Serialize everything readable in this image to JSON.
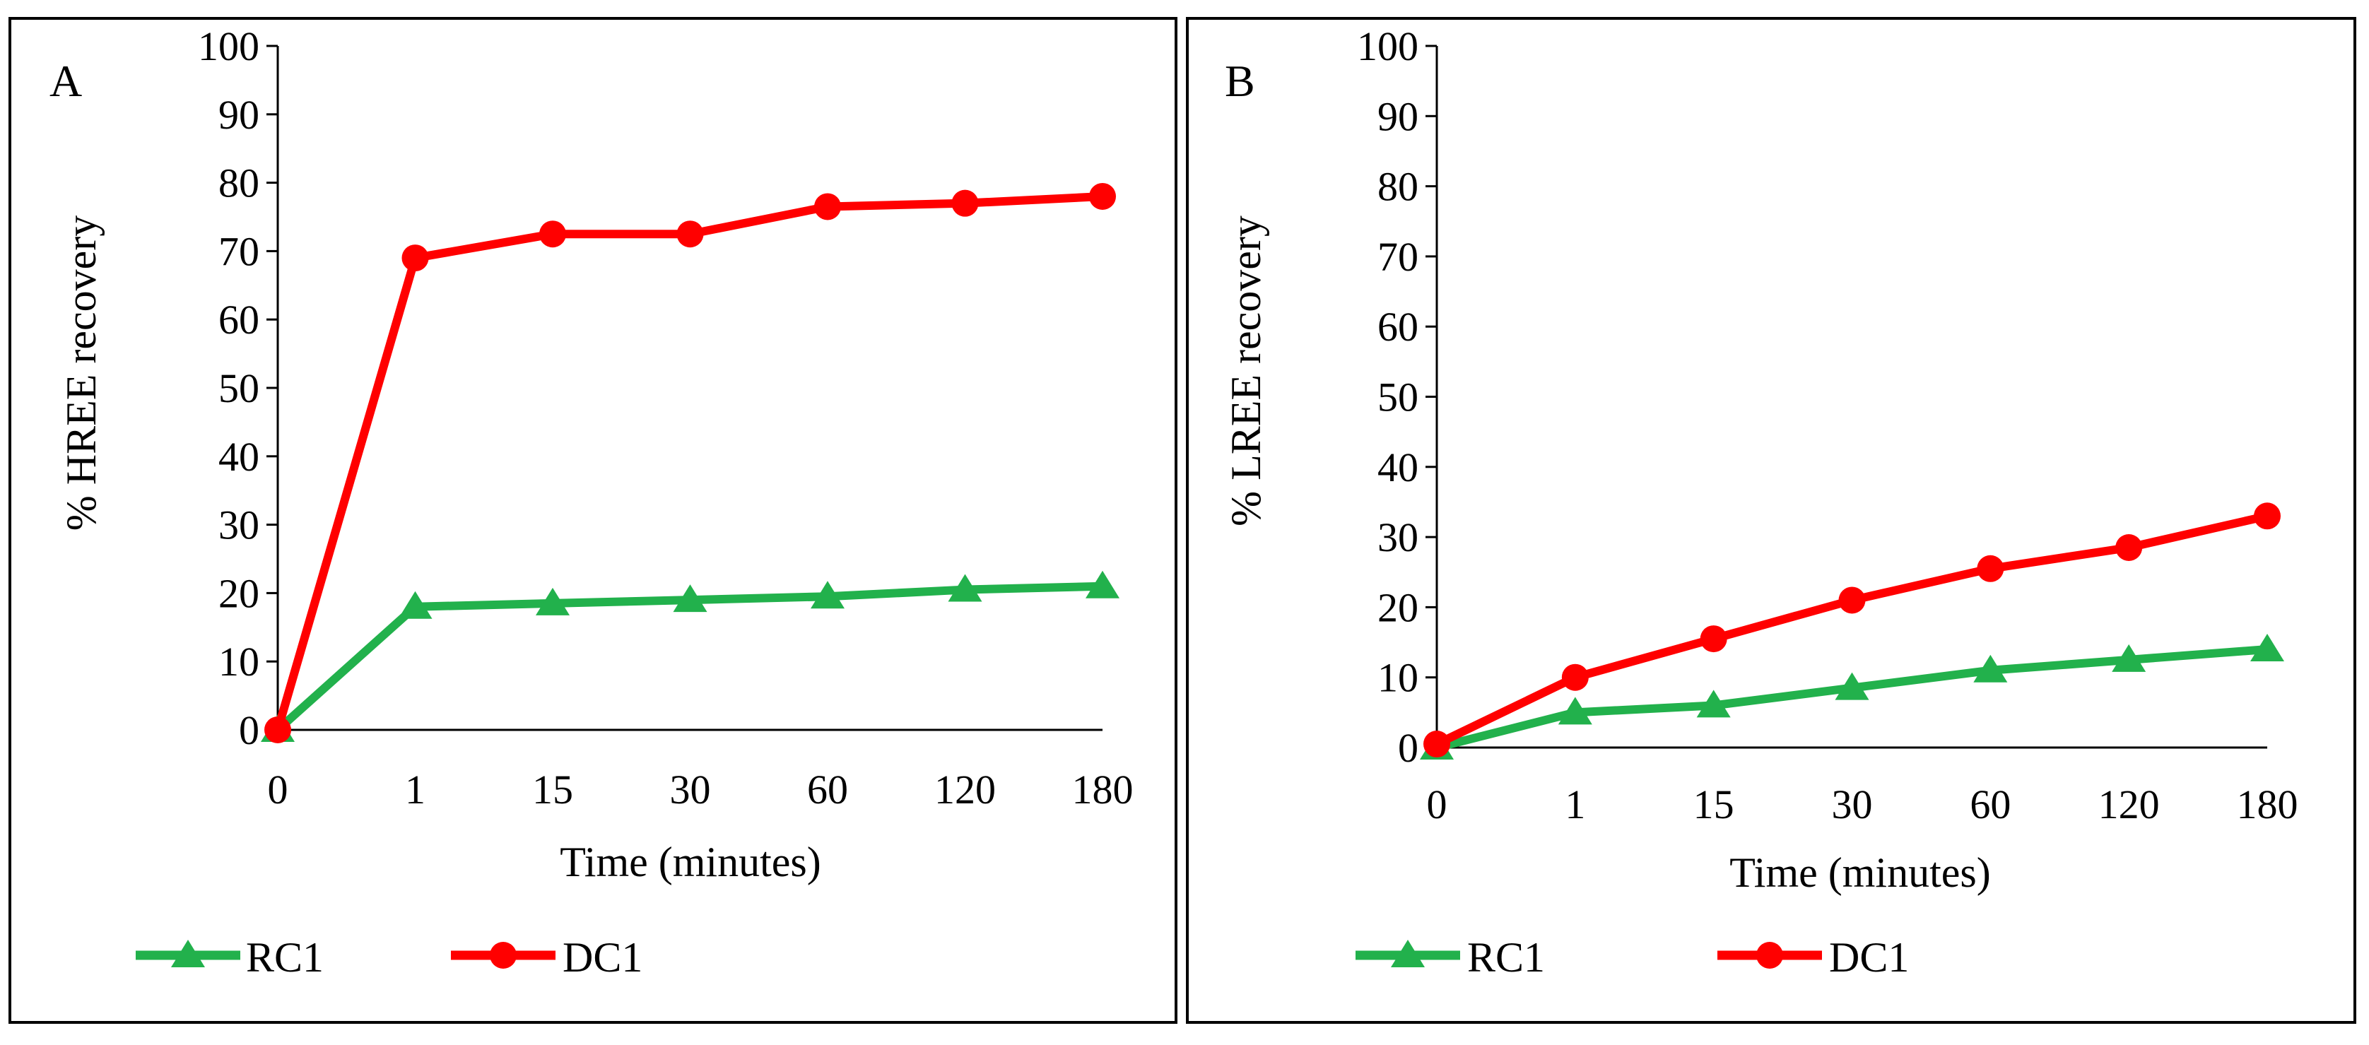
{
  "figure": {
    "panels": [
      {
        "panel_label": "A",
        "legend_rc1": "RC1",
        "legend_dc1": "DC1"
      },
      {
        "panel_label": "B",
        "legend_rc1": "RC1",
        "legend_dc1": "DC1"
      }
    ]
  },
  "chart_data": [
    {
      "type": "line",
      "panel": "A",
      "title": "",
      "xlabel": "Time (minutes)",
      "ylabel": "% HREE recovery",
      "categories": [
        "0",
        "1",
        "15",
        "30",
        "60",
        "120",
        "180"
      ],
      "ylim": [
        0,
        100
      ],
      "yticks": [
        "0",
        "10",
        "20",
        "30",
        "40",
        "50",
        "60",
        "70",
        "80",
        "90",
        "100"
      ],
      "grid": false,
      "legend_position": "bottom",
      "series": [
        {
          "name": "RC1",
          "color": "#22b14c",
          "marker": "triangle",
          "values": [
            0,
            18,
            18.5,
            19,
            19.5,
            20.5,
            21
          ]
        },
        {
          "name": "DC1",
          "color": "#ff0000",
          "marker": "circle",
          "values": [
            0,
            69,
            72.5,
            72.5,
            76.5,
            77,
            78
          ]
        }
      ]
    },
    {
      "type": "line",
      "panel": "B",
      "title": "",
      "xlabel": "Time (minutes)",
      "ylabel": "% LREE recovery",
      "categories": [
        "0",
        "1",
        "15",
        "30",
        "60",
        "120",
        "180"
      ],
      "ylim": [
        0,
        100
      ],
      "yticks": [
        "0",
        "10",
        "20",
        "30",
        "40",
        "50",
        "60",
        "70",
        "80",
        "90",
        "100"
      ],
      "grid": false,
      "legend_position": "bottom",
      "series": [
        {
          "name": "RC1",
          "color": "#22b14c",
          "marker": "triangle",
          "values": [
            0,
            5,
            6,
            8.5,
            11,
            12.5,
            14
          ]
        },
        {
          "name": "DC1",
          "color": "#ff0000",
          "marker": "circle",
          "values": [
            0.5,
            10,
            15.5,
            21,
            25.5,
            28.5,
            33
          ]
        }
      ]
    }
  ]
}
